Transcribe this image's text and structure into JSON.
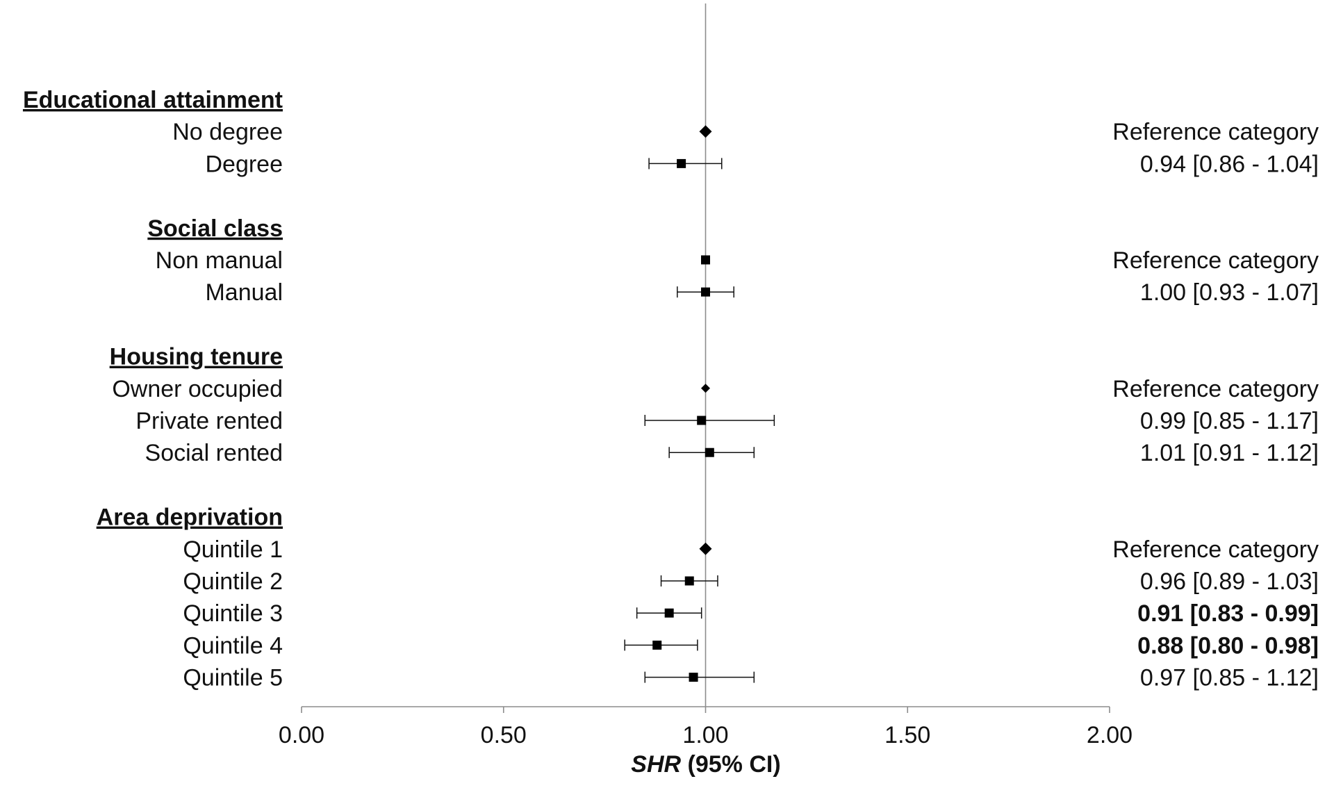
{
  "chart_data": {
    "type": "scatter",
    "subtype": "forest-plot",
    "title": "",
    "xlabel_italic": "SHR",
    "xlabel_rest": " (95% CI)",
    "xlim": [
      0,
      2
    ],
    "xticks": [
      0,
      0.5,
      1,
      1.5,
      2
    ],
    "xtick_labels": [
      "0.00",
      "0.50",
      "1.00",
      "1.50",
      "2.00"
    ],
    "reference_line_x": 1.0,
    "groups": [
      {
        "header": "Educational attainment",
        "rows": [
          {
            "label": "No degree",
            "est": 1.0,
            "lo": null,
            "hi": null,
            "marker": "diamond",
            "result": "Reference category",
            "bold": false
          },
          {
            "label": "Degree",
            "est": 0.94,
            "lo": 0.86,
            "hi": 1.04,
            "marker": "square",
            "result": "0.94 [0.86 - 1.04]",
            "bold": false
          }
        ]
      },
      {
        "header": "Social class",
        "rows": [
          {
            "label": "Non manual",
            "est": 1.0,
            "lo": null,
            "hi": null,
            "marker": "square",
            "result": "Reference category",
            "bold": false
          },
          {
            "label": "Manual",
            "est": 1.0,
            "lo": 0.93,
            "hi": 1.07,
            "marker": "square",
            "result": "1.00 [0.93 - 1.07]",
            "bold": false
          }
        ]
      },
      {
        "header": "Housing tenure",
        "rows": [
          {
            "label": "Owner occupied",
            "est": 1.0,
            "lo": null,
            "hi": null,
            "marker": "diamond-small",
            "result": "Reference category",
            "bold": false
          },
          {
            "label": "Private rented",
            "est": 0.99,
            "lo": 0.85,
            "hi": 1.17,
            "marker": "square",
            "result": "0.99 [0.85 - 1.17]",
            "bold": false
          },
          {
            "label": "Social rented",
            "est": 1.01,
            "lo": 0.91,
            "hi": 1.12,
            "marker": "square",
            "result": "1.01 [0.91 - 1.12]",
            "bold": false
          }
        ]
      },
      {
        "header": "Area deprivation",
        "rows": [
          {
            "label": "Quintile 1",
            "est": 1.0,
            "lo": null,
            "hi": null,
            "marker": "diamond",
            "result": "Reference category",
            "bold": false
          },
          {
            "label": "Quintile 2",
            "est": 0.96,
            "lo": 0.89,
            "hi": 1.03,
            "marker": "square",
            "result": "0.96 [0.89 - 1.03]",
            "bold": false
          },
          {
            "label": "Quintile 3",
            "est": 0.91,
            "lo": 0.83,
            "hi": 0.99,
            "marker": "square",
            "result": "0.91 [0.83 - 0.99]",
            "bold": true
          },
          {
            "label": "Quintile 4",
            "est": 0.88,
            "lo": 0.8,
            "hi": 0.98,
            "marker": "square",
            "result": "0.88 [0.80 - 0.98]",
            "bold": true
          },
          {
            "label": "Quintile 5",
            "est": 0.97,
            "lo": 0.85,
            "hi": 1.12,
            "marker": "square",
            "result": "0.97 [0.85 - 1.12]",
            "bold": false
          }
        ]
      }
    ]
  }
}
